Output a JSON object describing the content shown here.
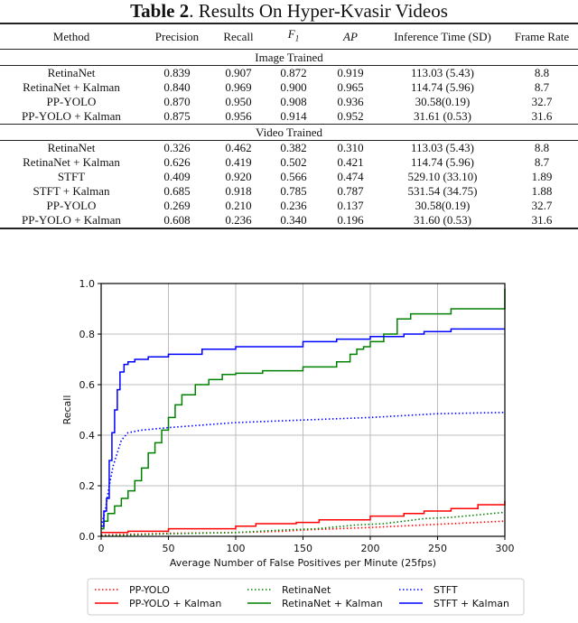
{
  "caption": {
    "label": "Table 2",
    "title": ". Results On Hyper-Kvasir Videos"
  },
  "table": {
    "headers": [
      "Method",
      "Precision",
      "Recall",
      "F1",
      "AP",
      "Inference Time (SD)",
      "Frame Rate"
    ],
    "sections": [
      {
        "title": "Image Trained",
        "rows": [
          {
            "method": "RetinaNet",
            "precision": "0.839",
            "recall": "0.907",
            "f1": "0.872",
            "ap": "0.919",
            "time": "113.03 (5.43)",
            "fps": "8.8",
            "bold": []
          },
          {
            "method": "RetinaNet + Kalman",
            "precision": "0.840",
            "recall": "0.969",
            "f1": "0.900",
            "ap": "0.965",
            "time": "114.74 (5.96)",
            "fps": "8.7",
            "bold": [
              "recall",
              "ap"
            ]
          },
          {
            "method": "PP-YOLO",
            "precision": "0.870",
            "recall": "0.950",
            "f1": "0.908",
            "ap": "0.936",
            "time": "30.58(0.19)",
            "fps": "32.7",
            "bold": [
              "time",
              "fps"
            ]
          },
          {
            "method": "PP-YOLO + Kalman",
            "precision": "0.875",
            "recall": "0.956",
            "f1": "0.914",
            "ap": "0.952",
            "time": "31.61 (0.53)",
            "fps": "31.6",
            "bold": [
              "precision",
              "f1"
            ]
          }
        ]
      },
      {
        "title": "Video Trained",
        "rows": [
          {
            "method": "RetinaNet",
            "precision": "0.326",
            "recall": "0.462",
            "f1": "0.382",
            "ap": "0.310",
            "time": "113.03 (5.43)",
            "fps": "8.8",
            "bold": []
          },
          {
            "method": "RetinaNet + Kalman",
            "precision": "0.626",
            "recall": "0.419",
            "f1": "0.502",
            "ap": "0.421",
            "time": "114.74 (5.96)",
            "fps": "8.7",
            "bold": []
          },
          {
            "method": "STFT",
            "precision": "0.409",
            "recall": "0.920",
            "f1": "0.566",
            "ap": "0.474",
            "time": "529.10 (33.10)",
            "fps": "1.89",
            "bold": []
          },
          {
            "method": "STFT + Kalman",
            "precision": "0.685",
            "recall": "0.918",
            "f1": "0.785",
            "ap": "0.787",
            "time": "531.54 (34.75)",
            "fps": "1.88",
            "bold": [
              "precision",
              "f1",
              "ap"
            ]
          },
          {
            "method": "PP-YOLO",
            "precision": "0.269",
            "recall": "0.210",
            "f1": "0.236",
            "ap": "0.137",
            "time": "30.58(0.19)",
            "fps": "32.7",
            "bold": [
              "time",
              "fps"
            ]
          },
          {
            "method": "PP-YOLO + Kalman",
            "precision": "0.608",
            "recall": "0.236",
            "f1": "0.340",
            "ap": "0.196",
            "time": "31.60 (0.53)",
            "fps": "31.6",
            "bold": []
          }
        ]
      }
    ]
  },
  "chart_data": {
    "type": "line",
    "title": "",
    "xlabel": "Average Number of False Positives per Minute (25fps)",
    "ylabel": "Recall",
    "xlim": [
      0,
      300
    ],
    "ylim": [
      0,
      1.0
    ],
    "xticks": [
      0,
      50,
      100,
      150,
      200,
      250,
      300
    ],
    "yticks": [
      0.0,
      0.2,
      0.4,
      0.6,
      0.8,
      1.0
    ],
    "xtick_labels": [
      "0",
      "50",
      "100",
      "150",
      "200",
      "250",
      "300"
    ],
    "ytick_labels": [
      "0.0",
      "0.2",
      "0.4",
      "0.6",
      "0.8",
      "1.0"
    ],
    "grid": true,
    "legend_position": "below",
    "legend_columns": 3,
    "series": [
      {
        "name": "PP-YOLO",
        "color": "#ff0000",
        "style": "dotted",
        "x": [
          0,
          20,
          50,
          100,
          135,
          150,
          200,
          240,
          260,
          300
        ],
        "y": [
          0.005,
          0.008,
          0.012,
          0.015,
          0.02,
          0.025,
          0.035,
          0.045,
          0.05,
          0.06
        ]
      },
      {
        "name": "PP-YOLO + Kalman",
        "color": "#ff0000",
        "style": "solid",
        "x": [
          0,
          16,
          20,
          50,
          100,
          115,
          145,
          162,
          200,
          225,
          240,
          260,
          280,
          300
        ],
        "y": [
          0.015,
          0.015,
          0.02,
          0.03,
          0.04,
          0.05,
          0.055,
          0.065,
          0.08,
          0.09,
          0.1,
          0.11,
          0.125,
          0.14
        ]
      },
      {
        "name": "RetinaNet",
        "color": "#008000",
        "style": "dotted",
        "x": [
          0,
          20,
          50,
          100,
          135,
          160,
          190,
          210,
          240,
          260,
          280,
          300
        ],
        "y": [
          0.002,
          0.005,
          0.01,
          0.015,
          0.025,
          0.03,
          0.045,
          0.05,
          0.07,
          0.075,
          0.085,
          0.095
        ]
      },
      {
        "name": "RetinaNet + Kalman",
        "color": "#008000",
        "style": "solid",
        "x": [
          0,
          2,
          5,
          10,
          15,
          20,
          25,
          30,
          35,
          40,
          45,
          50,
          55,
          60,
          70,
          80,
          90,
          100,
          120,
          150,
          175,
          185,
          190,
          195,
          200,
          210,
          220,
          230,
          240,
          250,
          260,
          300
        ],
        "y": [
          0.03,
          0.06,
          0.09,
          0.12,
          0.15,
          0.18,
          0.22,
          0.27,
          0.33,
          0.37,
          0.42,
          0.47,
          0.52,
          0.56,
          0.6,
          0.62,
          0.64,
          0.645,
          0.655,
          0.67,
          0.69,
          0.72,
          0.74,
          0.75,
          0.77,
          0.8,
          0.86,
          0.88,
          0.88,
          0.88,
          0.9,
          0.98
        ]
      },
      {
        "name": "STFT",
        "color": "#0000ff",
        "style": "dotted",
        "x": [
          0,
          3,
          6,
          9,
          12,
          15,
          20,
          30,
          50,
          75,
          100,
          150,
          200,
          250,
          300
        ],
        "y": [
          0.04,
          0.1,
          0.2,
          0.28,
          0.33,
          0.38,
          0.41,
          0.42,
          0.43,
          0.44,
          0.45,
          0.46,
          0.47,
          0.485,
          0.49
        ]
      },
      {
        "name": "STFT + Kalman",
        "color": "#0000ff",
        "style": "solid",
        "x": [
          0,
          2,
          4,
          6,
          8,
          10,
          12,
          14,
          17,
          20,
          25,
          35,
          50,
          75,
          100,
          150,
          175,
          200,
          225,
          240,
          260,
          300
        ],
        "y": [
          0.04,
          0.1,
          0.15,
          0.3,
          0.41,
          0.5,
          0.58,
          0.65,
          0.68,
          0.69,
          0.7,
          0.71,
          0.72,
          0.74,
          0.75,
          0.77,
          0.78,
          0.79,
          0.8,
          0.81,
          0.82,
          0.82
        ]
      }
    ]
  }
}
